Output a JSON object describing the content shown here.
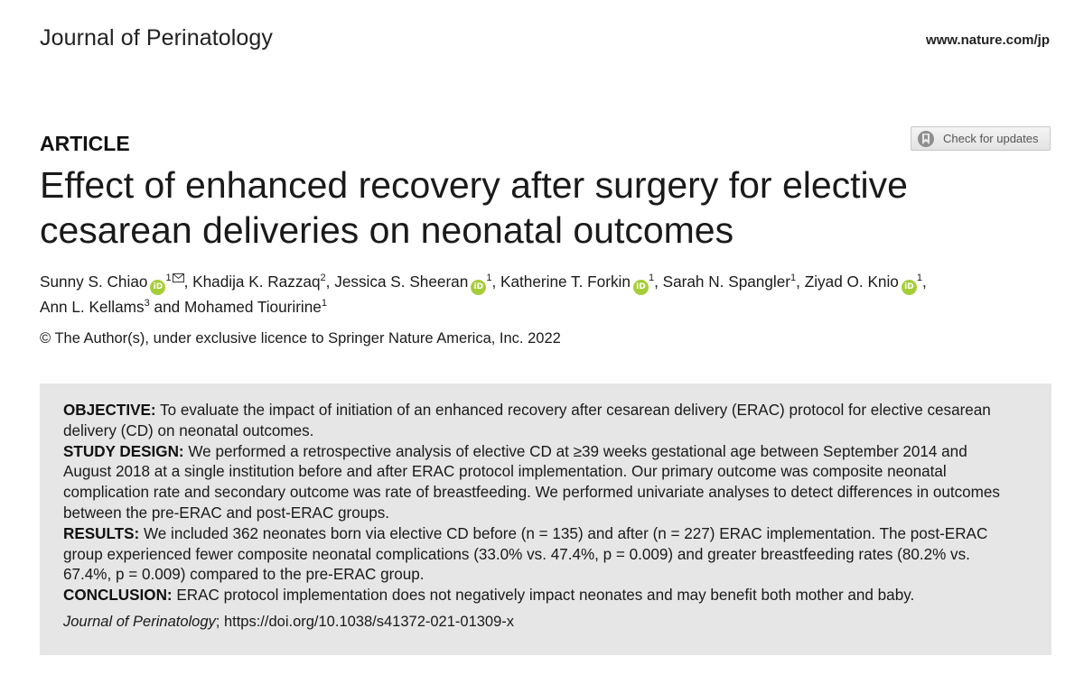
{
  "header": {
    "journal_name": "Journal of Perinatology",
    "journal_url": "www.nature.com/jp"
  },
  "article": {
    "type_label": "ARTICLE",
    "check_updates_label": "Check for updates",
    "title": "Effect of enhanced recovery after surgery for elective cesarean deliveries on neonatal outcomes",
    "authors": [
      {
        "name": "Sunny S. Chiao",
        "affil": "1",
        "orcid": true,
        "corresponding": true
      },
      {
        "name": "Khadija K. Razzaq",
        "affil": "2",
        "orcid": false,
        "corresponding": false
      },
      {
        "name": "Jessica S. Sheeran",
        "affil": "1",
        "orcid": true,
        "corresponding": false
      },
      {
        "name": "Katherine T. Forkin",
        "affil": "1",
        "orcid": true,
        "corresponding": false
      },
      {
        "name": "Sarah N. Spangler",
        "affil": "1",
        "orcid": false,
        "corresponding": false
      },
      {
        "name": "Ziyad O. Knio",
        "affil": "1",
        "orcid": true,
        "corresponding": false
      },
      {
        "name": "Ann L. Kellams",
        "affil": "3",
        "orcid": false,
        "corresponding": false
      },
      {
        "name": "Mohamed Tiouririne",
        "affil": "1",
        "orcid": false,
        "corresponding": false
      }
    ],
    "author_separator": ", ",
    "author_last_separator": " and ",
    "orcid_glyph": "iD",
    "copyright": "© The Author(s), under exclusive licence to Springer Nature America, Inc. 2022"
  },
  "abstract": {
    "sections": [
      {
        "heading": "OBJECTIVE:",
        "text": " To evaluate the impact of initiation of an enhanced recovery after cesarean delivery (ERAC) protocol for elective cesarean delivery (CD) on neonatal outcomes."
      },
      {
        "heading": "STUDY DESIGN:",
        "text": " We performed a retrospective analysis of elective CD at ≥39 weeks gestational age between September 2014 and August 2018 at a single institution before and after ERAC protocol implementation. Our primary outcome was composite neonatal complication rate and secondary outcome was rate of breastfeeding. We performed univariate analyses to detect differences in outcomes between the pre-ERAC and post-ERAC groups."
      },
      {
        "heading": "RESULTS:",
        "text": " We included 362 neonates born via elective CD before (n = 135) and after (n = 227) ERAC implementation. The post-ERAC group experienced fewer composite neonatal complications (33.0% vs. 47.4%, p = 0.009) and greater breastfeeding rates (80.2% vs. 67.4%, p = 0.009) compared to the pre-ERAC group."
      },
      {
        "heading": "CONCLUSION:",
        "text": " ERAC protocol implementation does not negatively impact neonates and may benefit both mother and baby."
      }
    ],
    "citation_journal": "Journal of Perinatology",
    "citation_rest": "; https://doi.org/10.1038/s41372-021-01309-x"
  },
  "colors": {
    "orcid_green": "#a6ce39",
    "abstract_background": "#e6e6e6"
  },
  "icons": {
    "orcid": "orcid-icon",
    "corresponding": "envelope-icon",
    "check_updates": "bookmark-icon"
  }
}
